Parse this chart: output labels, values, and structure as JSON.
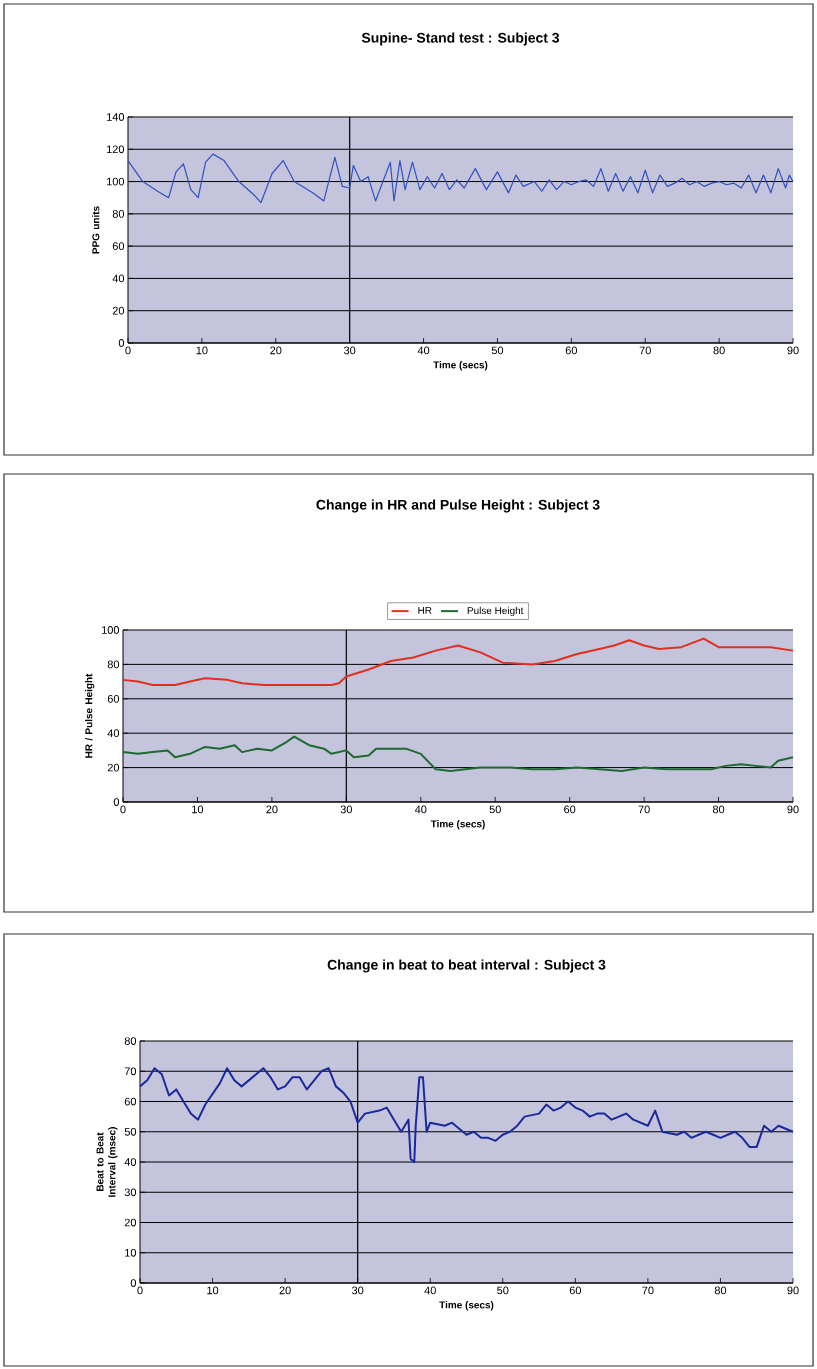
{
  "chart_data": [
    {
      "type": "line",
      "title": "Supine- Stand test : Subject 3",
      "xlabel": "Time (secs)",
      "ylabel": "PPG units",
      "xlim": [
        0,
        90
      ],
      "ylim": [
        0,
        140
      ],
      "xticks": [
        0,
        10,
        20,
        30,
        40,
        50,
        60,
        70,
        80,
        90
      ],
      "yticks": [
        0,
        20,
        40,
        60,
        80,
        100,
        120,
        140
      ],
      "grid": "y",
      "ref_lines": [
        {
          "axis": "x",
          "value": 30,
          "color": "#000000"
        }
      ],
      "series": [
        {
          "color": "#3050c0",
          "x": [
            0,
            2,
            4,
            5.5,
            6.5,
            7.5,
            8.5,
            9.5,
            10.5,
            11.5,
            13,
            15,
            17,
            18,
            19.5,
            21,
            22.5,
            25,
            26.5,
            28,
            29,
            30,
            30.5,
            31.5,
            32.5,
            33.5,
            34.5,
            35.5,
            36,
            36.8,
            37.5,
            38.5,
            39.5,
            40.5,
            41.5,
            42.5,
            43.5,
            44.5,
            45.5,
            47,
            48.5,
            50,
            51.5,
            52.5,
            53.5,
            55,
            56,
            57,
            58,
            59,
            60,
            61,
            62,
            63,
            64,
            65,
            66,
            67,
            68,
            69,
            70,
            71,
            72,
            73,
            74,
            75,
            76,
            77,
            78,
            79,
            80,
            81,
            82,
            83,
            84,
            85,
            86,
            87,
            88,
            89,
            89.5,
            90
          ],
          "values": [
            113,
            100,
            94,
            90,
            106,
            111,
            95,
            90,
            112,
            117,
            113,
            100,
            92,
            87,
            105,
            113,
            100,
            93,
            88,
            115,
            97,
            96,
            110,
            100,
            103,
            88,
            100,
            112,
            88,
            113,
            95,
            112,
            95,
            103,
            96,
            105,
            95,
            101,
            96,
            108,
            95,
            106,
            93,
            104,
            97,
            100,
            94,
            101,
            95,
            100,
            98,
            100,
            101,
            97,
            108,
            94,
            105,
            94,
            103,
            93,
            107,
            93,
            104,
            97,
            99,
            102,
            98,
            100,
            97,
            99,
            100,
            98,
            99,
            96,
            104,
            93,
            104,
            93,
            108,
            96,
            104,
            100
          ]
        }
      ]
    },
    {
      "type": "line",
      "title": "Change in HR and Pulse Height : Subject 3",
      "xlabel": "Time (secs)",
      "ylabel": "HR / Pulse Height",
      "xlim": [
        0,
        90
      ],
      "ylim": [
        0,
        100
      ],
      "xticks": [
        0,
        10,
        20,
        30,
        40,
        50,
        60,
        70,
        80,
        90
      ],
      "yticks": [
        0,
        20,
        40,
        60,
        80,
        100
      ],
      "grid": "y",
      "legend": "top",
      "ref_lines": [
        {
          "axis": "x",
          "value": 30,
          "color": "#000000"
        }
      ],
      "series": [
        {
          "name": "HR",
          "color": "#e03020",
          "x": [
            0,
            2,
            4,
            7,
            9,
            11,
            14,
            16,
            19,
            22,
            25,
            28,
            29,
            30,
            33,
            36,
            39,
            42,
            45,
            48,
            51,
            55,
            58,
            61,
            64,
            66,
            68,
            70,
            72,
            75,
            78,
            80,
            84,
            87,
            90
          ],
          "values": [
            71,
            70,
            68,
            68,
            70,
            72,
            71,
            69,
            68,
            68,
            68,
            68,
            69,
            73,
            77,
            82,
            84,
            88,
            91,
            87,
            81,
            80,
            82,
            86,
            89,
            91,
            94,
            91,
            89,
            90,
            95,
            90,
            90,
            90,
            88
          ]
        },
        {
          "name": "Pulse Height",
          "color": "#1e6a30",
          "x": [
            0,
            2,
            4,
            6,
            7,
            9,
            11,
            13,
            15,
            16,
            18,
            20,
            22,
            23,
            25,
            27,
            28,
            30,
            31,
            33,
            34,
            36,
            38,
            40,
            42,
            44,
            46,
            48,
            52,
            55,
            58,
            61,
            64,
            67,
            70,
            73,
            76,
            79,
            81,
            83,
            85,
            87,
            88,
            90
          ],
          "values": [
            29,
            28,
            29,
            30,
            26,
            28,
            32,
            31,
            33,
            29,
            31,
            30,
            35,
            38,
            33,
            31,
            28,
            30,
            26,
            27,
            31,
            31,
            31,
            28,
            19,
            18,
            19,
            20,
            20,
            19,
            19,
            20,
            19,
            18,
            20,
            19,
            19,
            19,
            21,
            22,
            21,
            20,
            24,
            26
          ]
        }
      ]
    },
    {
      "type": "line",
      "title": "Change in beat to beat interval : Subject 3",
      "xlabel": "Time (secs)",
      "ylabel": "Beat to Beat Interval (msec)",
      "xlim": [
        0,
        90
      ],
      "ylim": [
        0,
        80
      ],
      "xticks": [
        0,
        10,
        20,
        30,
        40,
        50,
        60,
        70,
        80,
        90
      ],
      "yticks": [
        0,
        10,
        20,
        30,
        40,
        50,
        60,
        70,
        80
      ],
      "grid": "y",
      "ref_lines": [
        {
          "axis": "x",
          "value": 30,
          "color": "#000000"
        }
      ],
      "series": [
        {
          "color": "#1a2a9a",
          "x": [
            0,
            1,
            2,
            3,
            4,
            5,
            6,
            7,
            8,
            9,
            11,
            12,
            13,
            14,
            16,
            17,
            18,
            19,
            20,
            21,
            22,
            23,
            24,
            25,
            26,
            27,
            28,
            29,
            30,
            31,
            33,
            34,
            35,
            36,
            37,
            37.3,
            37.8,
            38,
            38.5,
            39,
            39.5,
            40,
            42,
            43,
            44,
            45,
            46,
            47,
            48,
            49,
            50,
            51,
            52,
            53,
            55,
            56,
            57,
            58,
            59,
            60,
            61,
            62,
            63,
            64,
            65,
            66,
            67,
            68,
            70,
            71,
            72,
            74,
            75,
            76,
            77,
            78,
            79,
            80,
            81,
            82,
            83,
            84,
            85,
            86,
            87,
            88,
            89,
            90
          ],
          "values": [
            65,
            67,
            71,
            69,
            62,
            64,
            60,
            56,
            54,
            59,
            66,
            71,
            67,
            65,
            69,
            71,
            68,
            64,
            65,
            68,
            68,
            64,
            67,
            70,
            71,
            65,
            63,
            60,
            53,
            56,
            57,
            58,
            54,
            50,
            54,
            41,
            40,
            52,
            68,
            68,
            50,
            53,
            52,
            53,
            51,
            49,
            50,
            48,
            48,
            47,
            49,
            50,
            52,
            55,
            56,
            59,
            57,
            58,
            60,
            58,
            57,
            55,
            56,
            56,
            54,
            55,
            56,
            54,
            52,
            57,
            50,
            49,
            50,
            48,
            49,
            50,
            49,
            48,
            49,
            50,
            48,
            45,
            45,
            52,
            50,
            52,
            51,
            50
          ]
        }
      ]
    }
  ]
}
